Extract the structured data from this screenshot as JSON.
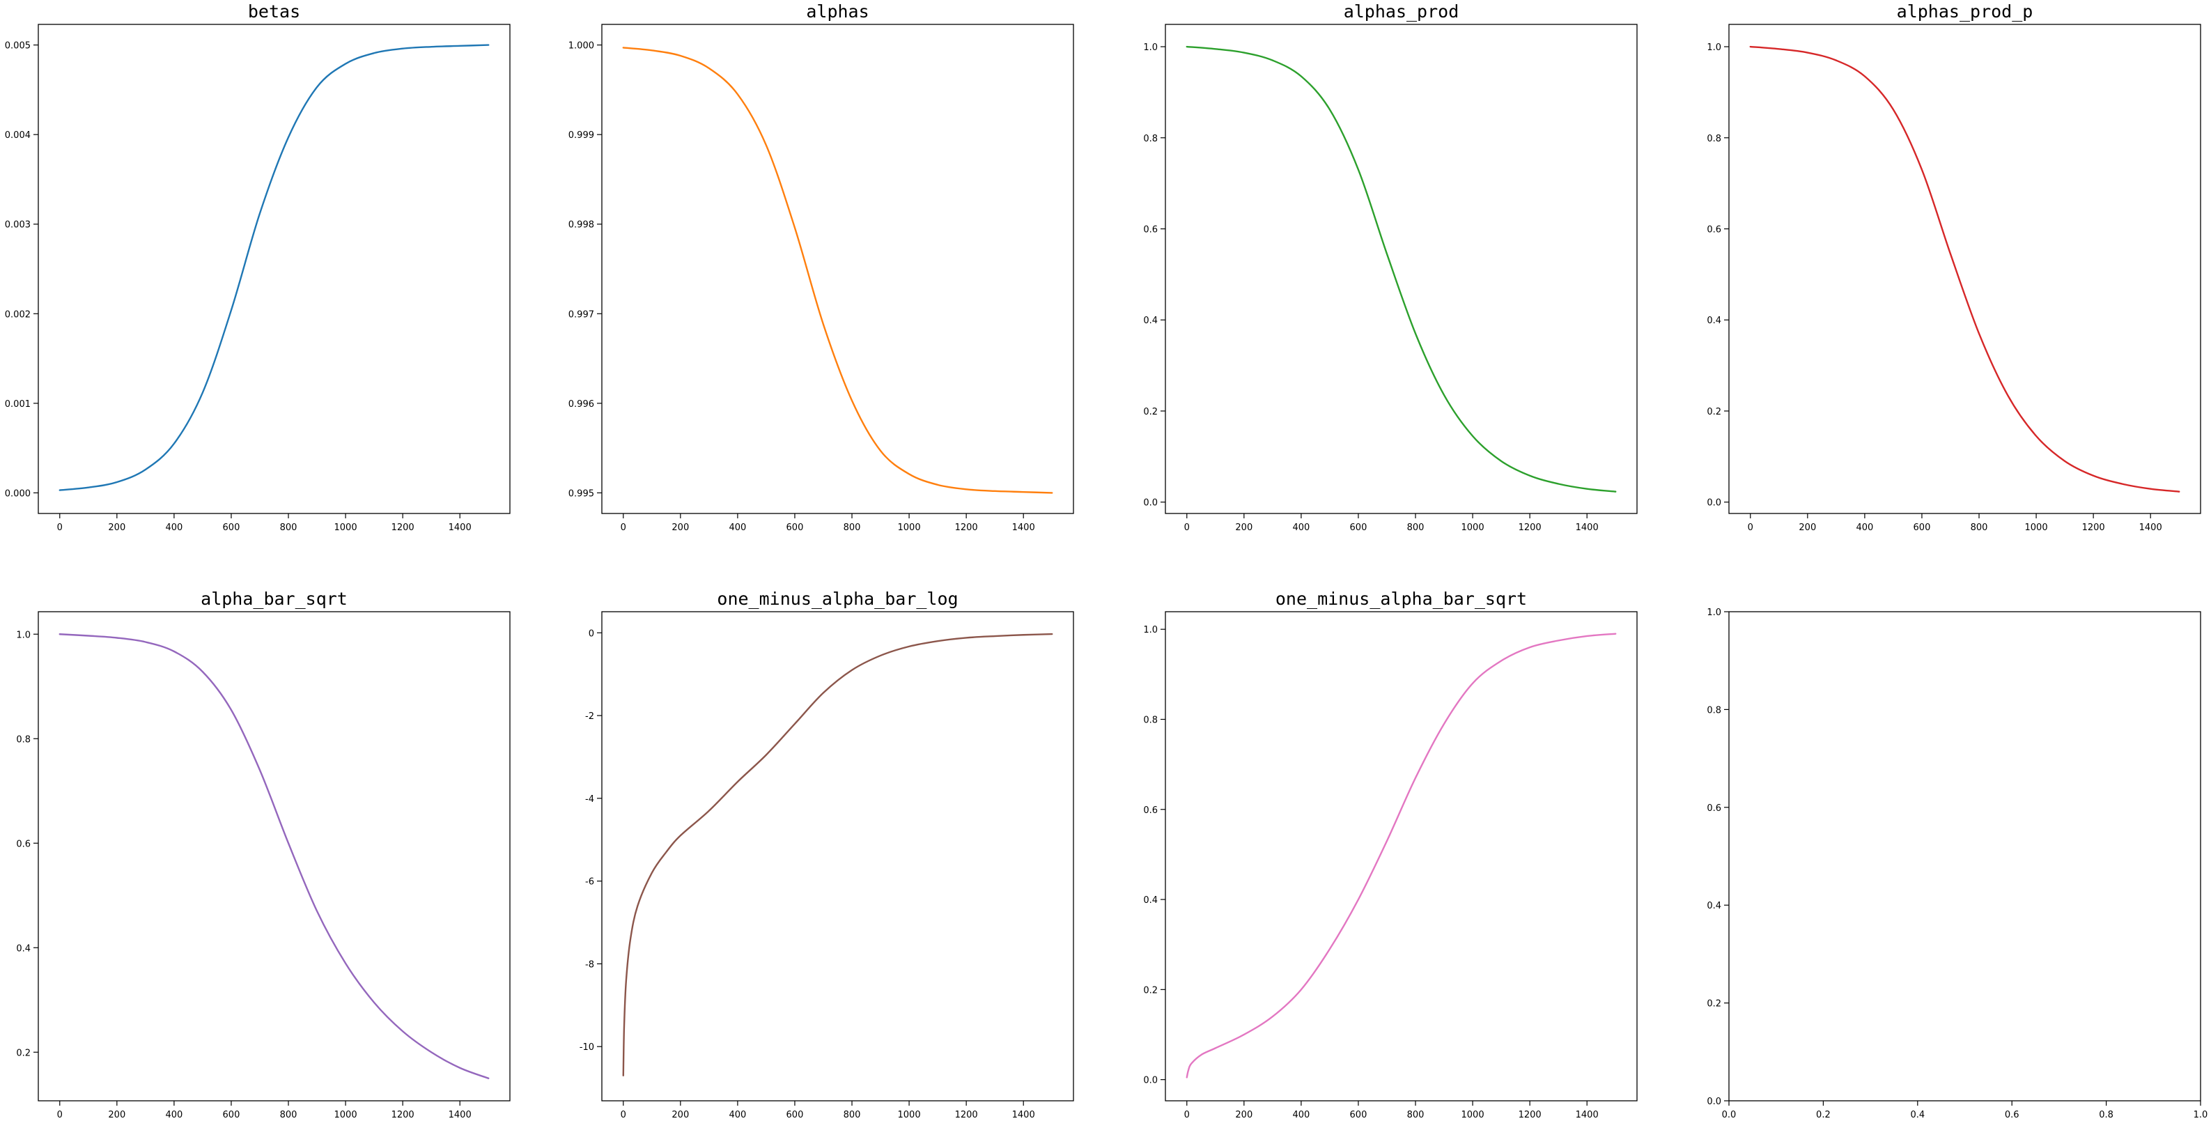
{
  "chart_data": [
    {
      "type": "line",
      "title": "betas",
      "color": "#1f77b4",
      "xlim": [
        -75,
        1575
      ],
      "ylim": [
        -0.00023,
        0.00523
      ],
      "xticks": [
        "0",
        "200",
        "400",
        "600",
        "800",
        "1000",
        "1200",
        "1400"
      ],
      "yticks": [
        "0.000",
        "0.001",
        "0.002",
        "0.003",
        "0.004",
        "0.005"
      ],
      "series": [
        {
          "x": [
            0,
            100,
            200,
            300,
            400,
            500,
            600,
            700,
            800,
            900,
            1000,
            1100,
            1200,
            1300,
            1400,
            1500
          ],
          "y": [
            3e-05,
            6e-05,
            0.00012,
            0.00026,
            0.00055,
            0.00112,
            0.00204,
            0.00312,
            0.00397,
            0.00453,
            0.00479,
            0.00491,
            0.00496,
            0.00498,
            0.00499,
            0.005
          ]
        }
      ]
    },
    {
      "type": "line",
      "title": "alphas",
      "color": "#ff7f0e",
      "xlim": [
        -75,
        1575
      ],
      "ylim": [
        0.99477,
        1.00023
      ],
      "xticks": [
        "0",
        "200",
        "400",
        "600",
        "800",
        "1000",
        "1200",
        "1400"
      ],
      "yticks": [
        "0.995",
        "0.996",
        "0.997",
        "0.998",
        "0.999",
        "1.000"
      ],
      "series": [
        {
          "x": [
            0,
            100,
            200,
            300,
            400,
            500,
            600,
            700,
            800,
            900,
            1000,
            1100,
            1200,
            1300,
            1400,
            1500
          ],
          "y": [
            0.99997,
            0.99994,
            0.99988,
            0.99974,
            0.99945,
            0.99888,
            0.99796,
            0.99688,
            0.99603,
            0.99547,
            0.99521,
            0.99509,
            0.99504,
            0.99502,
            0.99501,
            0.995
          ]
        }
      ]
    },
    {
      "type": "line",
      "title": "alphas_prod",
      "color": "#2ca02c",
      "xlim": [
        -75,
        1575
      ],
      "ylim": [
        -0.025,
        1.049
      ],
      "xticks": [
        "0",
        "200",
        "400",
        "600",
        "800",
        "1000",
        "1200",
        "1400"
      ],
      "yticks": [
        "0.0",
        "0.2",
        "0.4",
        "0.6",
        "0.8",
        "1.0"
      ],
      "series": [
        {
          "x": [
            0,
            100,
            200,
            300,
            400,
            500,
            600,
            700,
            800,
            900,
            1000,
            1100,
            1200,
            1300,
            1400,
            1500
          ],
          "y": [
            1.0,
            0.995,
            0.987,
            0.97,
            0.935,
            0.862,
            0.73,
            0.545,
            0.37,
            0.235,
            0.145,
            0.09,
            0.058,
            0.04,
            0.029,
            0.023
          ]
        }
      ]
    },
    {
      "type": "line",
      "title": "alphas_prod_p",
      "color": "#d62728",
      "xlim": [
        -75,
        1575
      ],
      "ylim": [
        -0.025,
        1.049
      ],
      "xticks": [
        "0",
        "200",
        "400",
        "600",
        "800",
        "1000",
        "1200",
        "1400"
      ],
      "yticks": [
        "0.0",
        "0.2",
        "0.4",
        "0.6",
        "0.8",
        "1.0"
      ],
      "series": [
        {
          "x": [
            0,
            100,
            200,
            300,
            400,
            500,
            600,
            700,
            800,
            900,
            1000,
            1100,
            1200,
            1300,
            1400,
            1500
          ],
          "y": [
            1.0,
            0.995,
            0.987,
            0.97,
            0.935,
            0.862,
            0.73,
            0.545,
            0.37,
            0.235,
            0.145,
            0.09,
            0.058,
            0.04,
            0.029,
            0.023
          ]
        }
      ]
    },
    {
      "type": "line",
      "title": "alpha_bar_sqrt",
      "color": "#9467bd",
      "xlim": [
        -75,
        1575
      ],
      "ylim": [
        0.107,
        1.043
      ],
      "xticks": [
        "0",
        "200",
        "400",
        "600",
        "800",
        "1000",
        "1200",
        "1400"
      ],
      "yticks": [
        "0.2",
        "0.4",
        "0.6",
        "0.8",
        "1.0"
      ],
      "series": [
        {
          "x": [
            0,
            100,
            200,
            300,
            400,
            500,
            600,
            700,
            800,
            900,
            1000,
            1100,
            1200,
            1300,
            1400,
            1500
          ],
          "y": [
            1.0,
            0.997,
            0.993,
            0.985,
            0.967,
            0.928,
            0.855,
            0.74,
            0.6,
            0.47,
            0.37,
            0.295,
            0.24,
            0.2,
            0.17,
            0.15
          ]
        }
      ]
    },
    {
      "type": "line",
      "title": "one_minus_alpha_bar_log",
      "color": "#8c564b",
      "xlim": [
        -75,
        1575
      ],
      "ylim": [
        -11.31,
        0.51
      ],
      "xticks": [
        "0",
        "200",
        "400",
        "600",
        "800",
        "1000",
        "1200",
        "1400"
      ],
      "yticks": [
        "-10",
        "-8",
        "-6",
        "-4",
        "-2",
        "0"
      ],
      "series": [
        {
          "x": [
            0,
            3,
            10,
            25,
            50,
            100,
            150,
            200,
            300,
            400,
            500,
            600,
            700,
            800,
            900,
            1000,
            1100,
            1200,
            1300,
            1400,
            1500
          ],
          "y": [
            -10.7,
            -9.5,
            -8.4,
            -7.4,
            -6.6,
            -5.8,
            -5.3,
            -4.9,
            -4.3,
            -3.6,
            -2.95,
            -2.2,
            -1.45,
            -0.9,
            -0.55,
            -0.33,
            -0.2,
            -0.12,
            -0.08,
            -0.05,
            -0.03
          ]
        }
      ]
    },
    {
      "type": "line",
      "title": "one_minus_alpha_bar_sqrt",
      "color": "#e377c2",
      "xlim": [
        -75,
        1575
      ],
      "ylim": [
        -0.047,
        1.039
      ],
      "xticks": [
        "0",
        "200",
        "400",
        "600",
        "800",
        "1000",
        "1200",
        "1400"
      ],
      "yticks": [
        "0.0",
        "0.2",
        "0.4",
        "0.6",
        "0.8",
        "1.0"
      ],
      "series": [
        {
          "x": [
            0,
            5,
            15,
            50,
            100,
            200,
            300,
            400,
            500,
            600,
            700,
            800,
            900,
            1000,
            1100,
            1200,
            1300,
            1400,
            1500
          ],
          "y": [
            0.005,
            0.02,
            0.035,
            0.055,
            0.07,
            0.1,
            0.14,
            0.2,
            0.29,
            0.4,
            0.53,
            0.67,
            0.79,
            0.88,
            0.93,
            0.96,
            0.975,
            0.985,
            0.99
          ]
        }
      ]
    },
    {
      "type": "line",
      "title": "",
      "color": "#000000",
      "xlim": [
        0,
        1
      ],
      "ylim": [
        0,
        1
      ],
      "xticks": [
        "0.0",
        "0.2",
        "0.4",
        "0.6",
        "0.8",
        "1.0"
      ],
      "yticks": [
        "0.0",
        "0.2",
        "0.4",
        "0.6",
        "0.8",
        "1.0"
      ],
      "series": []
    }
  ]
}
